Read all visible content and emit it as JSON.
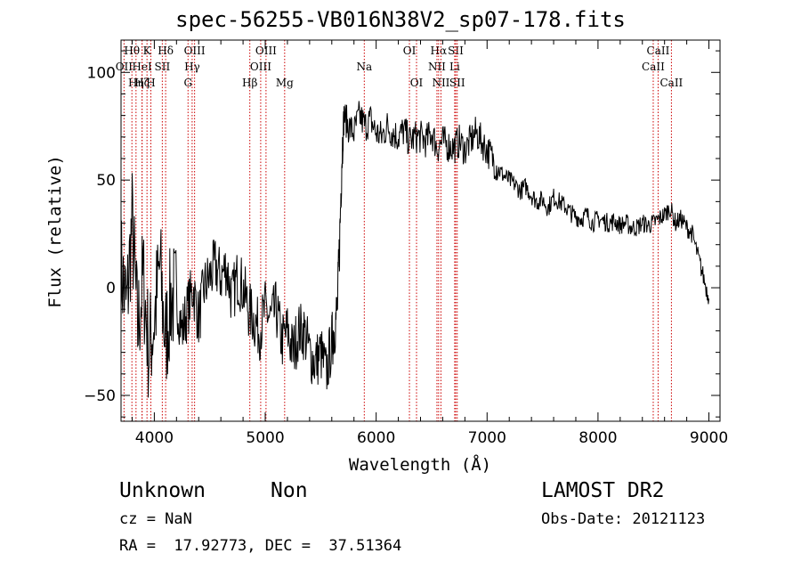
{
  "chart_data": {
    "type": "line",
    "title": "spec-56255-VB016N38V2_sp07-178.fits",
    "xlabel": "Wavelength (Å)",
    "ylabel": "Flux (relative)",
    "xlim": [
      3700,
      9100
    ],
    "ylim": [
      -62,
      115
    ],
    "xticks": [
      4000,
      5000,
      6000,
      7000,
      8000,
      9000
    ],
    "yticks": [
      -50,
      0,
      50,
      100
    ],
    "xtick_labels": [
      "4000",
      "5000",
      "6000",
      "7000",
      "8000",
      "9000"
    ],
    "ytick_labels": [
      "−50",
      "0",
      "50",
      "100"
    ],
    "grid": false,
    "line_color": "#000000",
    "marker_color": "#cc0000",
    "series": [
      {
        "x": [
          3700,
          3750,
          3800,
          3850,
          3900,
          3950,
          4000,
          4050,
          4100,
          4150,
          4200,
          4250,
          4300,
          4350,
          4400,
          4450,
          4500,
          4550,
          4600,
          4650,
          4700,
          4750,
          4800,
          4850,
          4900,
          4950,
          5000,
          5050,
          5100,
          5150,
          5200,
          5250,
          5300,
          5350,
          5400,
          5450,
          5500,
          5550,
          5600,
          5620,
          5650,
          5670,
          5690,
          5710,
          5750,
          5800,
          5850,
          5900,
          5950,
          6000,
          6050,
          6100,
          6150,
          6200,
          6250,
          6300,
          6350,
          6400,
          6450,
          6500,
          6550,
          6600,
          6650,
          6700,
          6750,
          6800,
          6850,
          6900,
          6950,
          7000,
          7050,
          7100,
          7150,
          7200,
          7250,
          7300,
          7350,
          7400,
          7450,
          7500,
          7550,
          7600,
          7650,
          7700,
          7750,
          7800,
          7850,
          7900,
          7950,
          8000,
          8050,
          8100,
          8150,
          8200,
          8250,
          8300,
          8350,
          8400,
          8450,
          8500,
          8550,
          8600,
          8650,
          8700,
          8750,
          8800,
          8850,
          8900,
          8950,
          9000
        ],
        "y": [
          10,
          -10,
          30,
          -20,
          5,
          -30,
          -15,
          10,
          -25,
          -5,
          -5,
          -20,
          -10,
          0,
          -15,
          0,
          5,
          10,
          5,
          10,
          -5,
          5,
          0,
          -10,
          -15,
          -20,
          -10,
          -15,
          -10,
          -25,
          -20,
          -30,
          -20,
          -20,
          -30,
          -35,
          -30,
          -40,
          -25,
          -20,
          -10,
          20,
          60,
          80,
          75,
          72,
          80,
          75,
          78,
          72,
          70,
          75,
          72,
          70,
          73,
          68,
          70,
          70,
          68,
          72,
          65,
          68,
          66,
          65,
          68,
          64,
          68,
          72,
          68,
          64,
          60,
          55,
          52,
          50,
          48,
          45,
          47,
          43,
          40,
          41,
          37,
          42,
          40,
          38,
          35,
          33,
          32,
          34,
          30,
          32,
          31,
          30,
          31,
          29,
          30,
          28,
          28,
          30,
          29,
          30,
          32,
          34,
          37,
          30,
          32,
          28,
          25,
          15,
          5,
          -5
        ]
      }
    ],
    "annotations": [
      {
        "label": "Hθ",
        "wavelength": 3798,
        "row": 1
      },
      {
        "label": "OII",
        "wavelength": 3727,
        "row": 2
      },
      {
        "label": "Hη",
        "wavelength": 3835,
        "row": 3
      },
      {
        "label": "HeI",
        "wavelength": 3889,
        "row": 2
      },
      {
        "label": "Hζ",
        "wavelength": 3890,
        "row": 3
      },
      {
        "label": "K",
        "wavelength": 3934,
        "row": 1
      },
      {
        "label": "H",
        "wavelength": 3969,
        "row": 3
      },
      {
        "label": "SII",
        "wavelength": 4072,
        "row": 2
      },
      {
        "label": "Hδ",
        "wavelength": 4102,
        "row": 1
      },
      {
        "label": "OIII",
        "wavelength": 4363,
        "row": 1
      },
      {
        "label": "Hγ",
        "wavelength": 4341,
        "row": 2
      },
      {
        "label": "G",
        "wavelength": 4304,
        "row": 3
      },
      {
        "label": "OIII",
        "wavelength": 5007,
        "row": 1
      },
      {
        "label": "OIII",
        "wavelength": 4959,
        "row": 2
      },
      {
        "label": "Hβ",
        "wavelength": 4861,
        "row": 3
      },
      {
        "label": "Mg",
        "wavelength": 5175,
        "row": 3
      },
      {
        "label": "Na",
        "wavelength": 5893,
        "row": 2
      },
      {
        "label": "OI",
        "wavelength": 6300,
        "row": 1
      },
      {
        "label": "OI",
        "wavelength": 6364,
        "row": 3
      },
      {
        "label": "Hα",
        "wavelength": 6563,
        "row": 1
      },
      {
        "label": "NII",
        "wavelength": 6548,
        "row": 2
      },
      {
        "label": "NII",
        "wavelength": 6584,
        "row": 3
      },
      {
        "label": "SII",
        "wavelength": 6717,
        "row": 1
      },
      {
        "label": "Li",
        "wavelength": 6708,
        "row": 2
      },
      {
        "label": "SII",
        "wavelength": 6731,
        "row": 3
      },
      {
        "label": "CaII",
        "wavelength": 8542,
        "row": 1
      },
      {
        "label": "CaII",
        "wavelength": 8498,
        "row": 2
      },
      {
        "label": "CaII",
        "wavelength": 8662,
        "row": 3
      }
    ]
  },
  "info": {
    "object_class": "Unknown",
    "subclass": "Non",
    "survey": "LAMOST DR2",
    "cz": "cz = NaN",
    "obs_date": "Obs-Date: 20121123",
    "coords": "RA =  17.92773, DEC =  37.51364"
  }
}
